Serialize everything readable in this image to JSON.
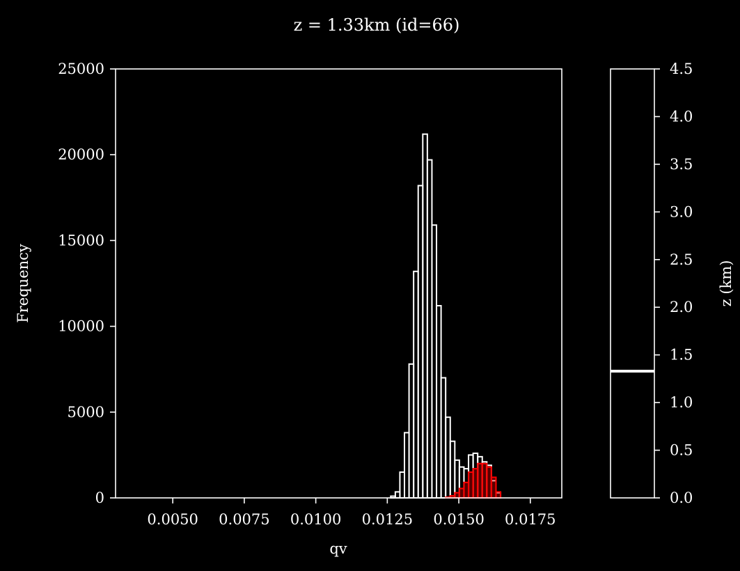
{
  "chart_data": [
    {
      "type": "bar",
      "title": "z = 1.33km (id=66)",
      "xlabel": "qv",
      "ylabel": "Frequency",
      "xlim": [
        0.003,
        0.0186
      ],
      "ylim": [
        0,
        25000
      ],
      "xticks": [
        "0.0050",
        "0.0075",
        "0.0100",
        "0.0125",
        "0.0150",
        "0.0175"
      ],
      "xtick_values": [
        0.005,
        0.0075,
        0.01,
        0.0125,
        0.015,
        0.0175
      ],
      "yticks": [
        "0",
        "5000",
        "10000",
        "15000",
        "20000",
        "25000"
      ],
      "ytick_values": [
        0,
        5000,
        10000,
        15000,
        20000,
        25000
      ],
      "bin_width": 0.00016,
      "series": [
        {
          "style": "step-outline",
          "color": "#ffffff",
          "bin_left": [
            0.01262,
            0.01278,
            0.01294,
            0.0131,
            0.01326,
            0.01342,
            0.01358,
            0.01374,
            0.0139,
            0.01406,
            0.01422,
            0.01438,
            0.01454,
            0.0147,
            0.01486,
            0.01502,
            0.01518,
            0.01534,
            0.0155,
            0.01566,
            0.01582,
            0.01598,
            0.01614,
            0.0163
          ],
          "values": [
            100,
            350,
            1500,
            3800,
            7800,
            13200,
            18200,
            21200,
            19700,
            15900,
            11200,
            7000,
            4700,
            3300,
            2200,
            1800,
            1700,
            2500,
            2600,
            2400,
            2100,
            1900,
            1000,
            300
          ]
        },
        {
          "style": "step-filled",
          "color": "#ff0000",
          "bin_left": [
            0.01454,
            0.0147,
            0.01486,
            0.01502,
            0.01518,
            0.01534,
            0.0155,
            0.01566,
            0.01582,
            0.01598,
            0.01614,
            0.0163
          ],
          "values": [
            40,
            120,
            300,
            550,
            900,
            1500,
            1700,
            2000,
            2000,
            1800,
            1200,
            350
          ]
        }
      ]
    },
    {
      "type": "colorbar",
      "ylabel": "z (km)",
      "ylim": [
        0,
        4.5
      ],
      "yticks": [
        "0.0",
        "0.5",
        "1.0",
        "1.5",
        "2.0",
        "2.5",
        "3.0",
        "3.5",
        "4.0",
        "4.5"
      ],
      "ytick_values": [
        0,
        0.5,
        1.0,
        1.5,
        2.0,
        2.5,
        3.0,
        3.5,
        4.0,
        4.5
      ],
      "marker_value": 1.33,
      "marker_color": "#ffffff"
    }
  ]
}
